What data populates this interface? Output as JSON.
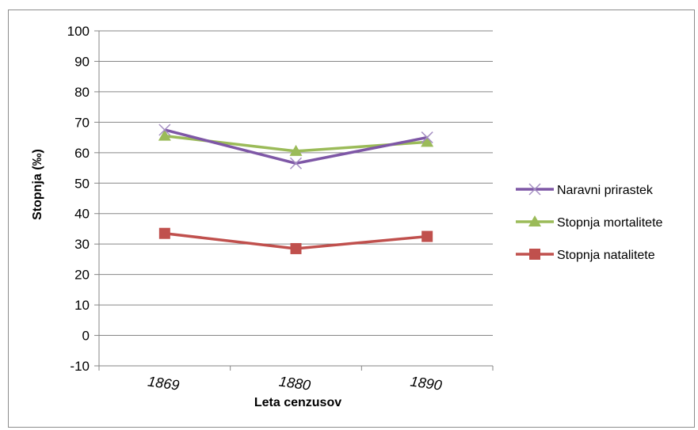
{
  "chart_data": {
    "type": "line",
    "title": "",
    "xlabel": "Leta cenzusov",
    "ylabel": "Stopnja (‰)",
    "categories": [
      "1869",
      "1880",
      "1890"
    ],
    "ylim": [
      -10,
      100
    ],
    "yticks": [
      -10,
      0,
      10,
      20,
      30,
      40,
      50,
      60,
      70,
      80,
      90,
      100
    ],
    "grid": true,
    "legend_position": "right",
    "series": [
      {
        "name": "Naravni prirastek",
        "values": [
          67.5,
          56.5,
          65
        ],
        "color": "#7e57a6",
        "marker": "x"
      },
      {
        "name": "Stopnja mortalitete",
        "values": [
          65.5,
          60.5,
          63.5
        ],
        "color": "#9bbb59",
        "marker": "triangle"
      },
      {
        "name": "Stopnja natalitete",
        "values": [
          33.5,
          28.5,
          32.5
        ],
        "color": "#c0504d",
        "marker": "square"
      }
    ]
  }
}
